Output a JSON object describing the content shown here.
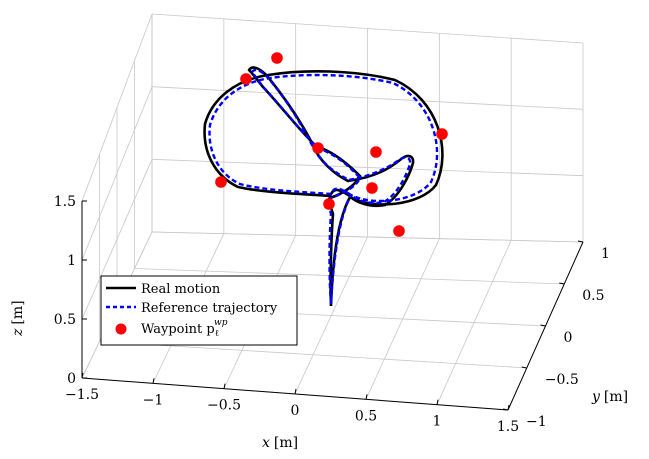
{
  "chart_data": {
    "type": "line3d",
    "title": "",
    "axes": {
      "x": {
        "label_var": "x",
        "label_unit": "[m]",
        "range": [
          -1.5,
          1.5
        ],
        "ticks": [
          "−1.5",
          "−1",
          "−0.5",
          "0",
          "0.5",
          "1",
          "1.5"
        ]
      },
      "y": {
        "label_var": "y",
        "label_unit": "[m]",
        "range": [
          -1,
          1
        ],
        "ticks": [
          "−1",
          "−0.5",
          "0",
          "0.5",
          "1"
        ]
      },
      "z": {
        "label_var": "z",
        "label_unit": "[m]",
        "range": [
          0,
          1.5
        ],
        "ticks": [
          "0",
          "0.5",
          "1",
          "1.5"
        ]
      }
    },
    "grid": true,
    "legend": {
      "placement": "bottom-left",
      "entries": [
        {
          "label": "Real motion",
          "style": "solid",
          "color": "#000000"
        },
        {
          "label": "Reference trajectory",
          "style": "dashed",
          "color": "#0000ff"
        },
        {
          "label": "Waypoint p",
          "sup": "wp",
          "sub": "ℓ",
          "style": "marker",
          "color": "#ff0000"
        }
      ]
    },
    "series": [
      {
        "name": "Real motion",
        "color": "#000000"
      },
      {
        "name": "Reference trajectory",
        "color": "#0000ff"
      },
      {
        "name": "Waypoint",
        "color": "#ff0000"
      }
    ]
  }
}
